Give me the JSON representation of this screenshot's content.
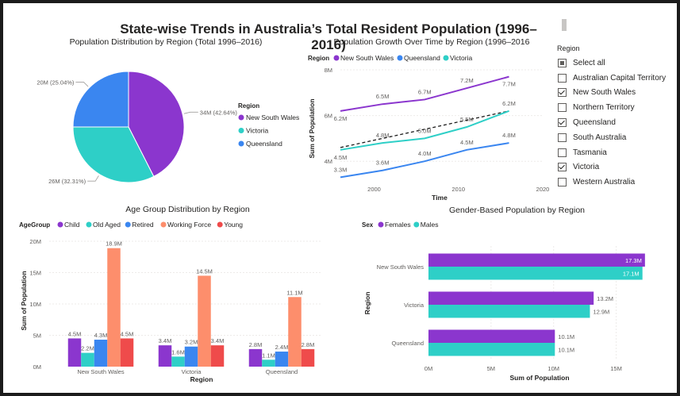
{
  "dashboard": {
    "title": "State-wise Trends in Australia’s Total Resident Population (1996–2016)"
  },
  "colors": {
    "nsw": "#8b36ce",
    "vic": "#2ecfc7",
    "qld": "#3a86f0",
    "total_dashed": "#1a1a1a",
    "child": "#8b36ce",
    "old_aged": "#2ecfc7",
    "retired": "#3a86f0",
    "working_force": "#fd8e6c",
    "young": "#ef4b4b",
    "females": "#8b36ce",
    "males": "#2ecfc7"
  },
  "chart_data": [
    {
      "id": "pie",
      "type": "pie",
      "title": "Population Distribution by Region (Total 1996–2016)",
      "legend_title": "Region",
      "legend_position": "right",
      "slices": [
        {
          "name": "New South Wales",
          "value": 34,
          "label": "34M (42.64%)",
          "color": "#8b36ce"
        },
        {
          "name": "Victoria",
          "value": 26,
          "label": "26M (32.31%)",
          "color": "#2ecfc7"
        },
        {
          "name": "Queensland",
          "value": 20,
          "label": "20M (25.04%)",
          "color": "#3a86f0"
        }
      ]
    },
    {
      "id": "line",
      "type": "line",
      "title": "Population Growth Over Time by Region (1996–2016",
      "legend_title": "Region",
      "legend_position": "top-left",
      "xlabel": "Time",
      "ylabel": "Sum of Population",
      "xlim": [
        1996,
        2020
      ],
      "ylim": [
        3.0,
        8.0
      ],
      "x_ticks": [
        2000,
        2010,
        2020
      ],
      "y_ticks": [
        {
          "value": 4,
          "label": "4M"
        },
        {
          "value": 6,
          "label": "6M"
        },
        {
          "value": 8,
          "label": "8M"
        }
      ],
      "x": [
        1996,
        2001,
        2006,
        2011,
        2016
      ],
      "series": [
        {
          "name": "New South Wales",
          "color": "#8b36ce",
          "values": [
            6.2,
            6.5,
            6.7,
            7.2,
            7.7
          ],
          "labels": [
            "6.2M",
            "6.5M",
            "6.7M",
            "7.2M",
            "7.7M"
          ]
        },
        {
          "name": "Queensland",
          "color": "#3a86f0",
          "values": [
            3.3,
            3.6,
            4.0,
            4.5,
            4.8
          ],
          "labels": [
            "3.3M",
            "3.6M",
            "4.0M",
            "4.5M",
            "4.8M"
          ]
        },
        {
          "name": "Victoria",
          "color": "#2ecfc7",
          "values": [
            4.5,
            4.8,
            5.0,
            5.5,
            6.2
          ],
          "labels": [
            "4.5M",
            "4.8M",
            "5.0M",
            "5.5M",
            "6.2M"
          ]
        }
      ],
      "trend": {
        "x": [
          1996,
          2016
        ],
        "values": [
          4.6,
          6.2
        ]
      }
    },
    {
      "id": "age",
      "type": "bar",
      "title": "Age Group Distribution by Region",
      "legend_title": "AgeGroup",
      "legend_position": "top-left",
      "xlabel": "Region",
      "ylabel": "Sum of Population",
      "ylim": [
        0,
        20
      ],
      "y_ticks": [
        {
          "value": 0,
          "label": "0M"
        },
        {
          "value": 5,
          "label": "5M"
        },
        {
          "value": 10,
          "label": "10M"
        },
        {
          "value": 15,
          "label": "15M"
        },
        {
          "value": 20,
          "label": "20M"
        }
      ],
      "categories": [
        "New South Wales",
        "Victoria",
        "Queensland"
      ],
      "series": [
        {
          "name": "Child",
          "color": "#8b36ce",
          "values": [
            4.5,
            3.4,
            2.8
          ],
          "labels": [
            "4.5M",
            "3.4M",
            "2.8M"
          ]
        },
        {
          "name": "Old Aged",
          "color": "#2ecfc7",
          "values": [
            2.2,
            1.6,
            1.1
          ],
          "labels": [
            "2.2M",
            "1.6M",
            "1.1M"
          ]
        },
        {
          "name": "Retired",
          "color": "#3a86f0",
          "values": [
            4.3,
            3.2,
            2.4
          ],
          "labels": [
            "4.3M",
            "3.2M",
            "2.4M"
          ]
        },
        {
          "name": "Working Force",
          "color": "#fd8e6c",
          "values": [
            18.9,
            14.5,
            11.1
          ],
          "labels": [
            "18.9M",
            "14.5M",
            "11.1M"
          ]
        },
        {
          "name": "Young",
          "color": "#ef4b4b",
          "values": [
            4.5,
            3.4,
            2.8
          ],
          "labels": [
            "4.5M",
            "3.4M",
            "2.8M"
          ]
        }
      ]
    },
    {
      "id": "gender",
      "type": "bar",
      "orientation": "horizontal",
      "title": "Gender-Based Population by Region",
      "legend_title": "Sex",
      "legend_position": "top-left",
      "xlabel": "Sum of Population",
      "ylabel": "Region",
      "xlim": [
        0,
        17.5
      ],
      "x_ticks": [
        {
          "value": 0,
          "label": "0M"
        },
        {
          "value": 5,
          "label": "5M"
        },
        {
          "value": 10,
          "label": "10M"
        },
        {
          "value": 15,
          "label": "15M"
        }
      ],
      "categories": [
        "New South Wales",
        "Victoria",
        "Queensland"
      ],
      "series": [
        {
          "name": "Females",
          "color": "#8b36ce",
          "values": [
            17.3,
            13.2,
            10.1
          ],
          "labels": [
            "17.3M",
            "13.2M",
            "10.1M"
          ]
        },
        {
          "name": "Males",
          "color": "#2ecfc7",
          "values": [
            17.1,
            12.9,
            10.1
          ],
          "labels": [
            "17.1M",
            "12.9M",
            "10.1M"
          ]
        }
      ]
    }
  ],
  "slicer": {
    "title": "Region",
    "items": [
      {
        "label": "Select all",
        "state": "partial"
      },
      {
        "label": "Australian Capital Territory",
        "state": "unchecked"
      },
      {
        "label": "New South Wales",
        "state": "checked"
      },
      {
        "label": "Northern Territory",
        "state": "unchecked"
      },
      {
        "label": "Queensland",
        "state": "checked"
      },
      {
        "label": "South Australia",
        "state": "unchecked"
      },
      {
        "label": "Tasmania",
        "state": "unchecked"
      },
      {
        "label": "Victoria",
        "state": "checked"
      },
      {
        "label": "Western Australia",
        "state": "unchecked"
      }
    ]
  }
}
